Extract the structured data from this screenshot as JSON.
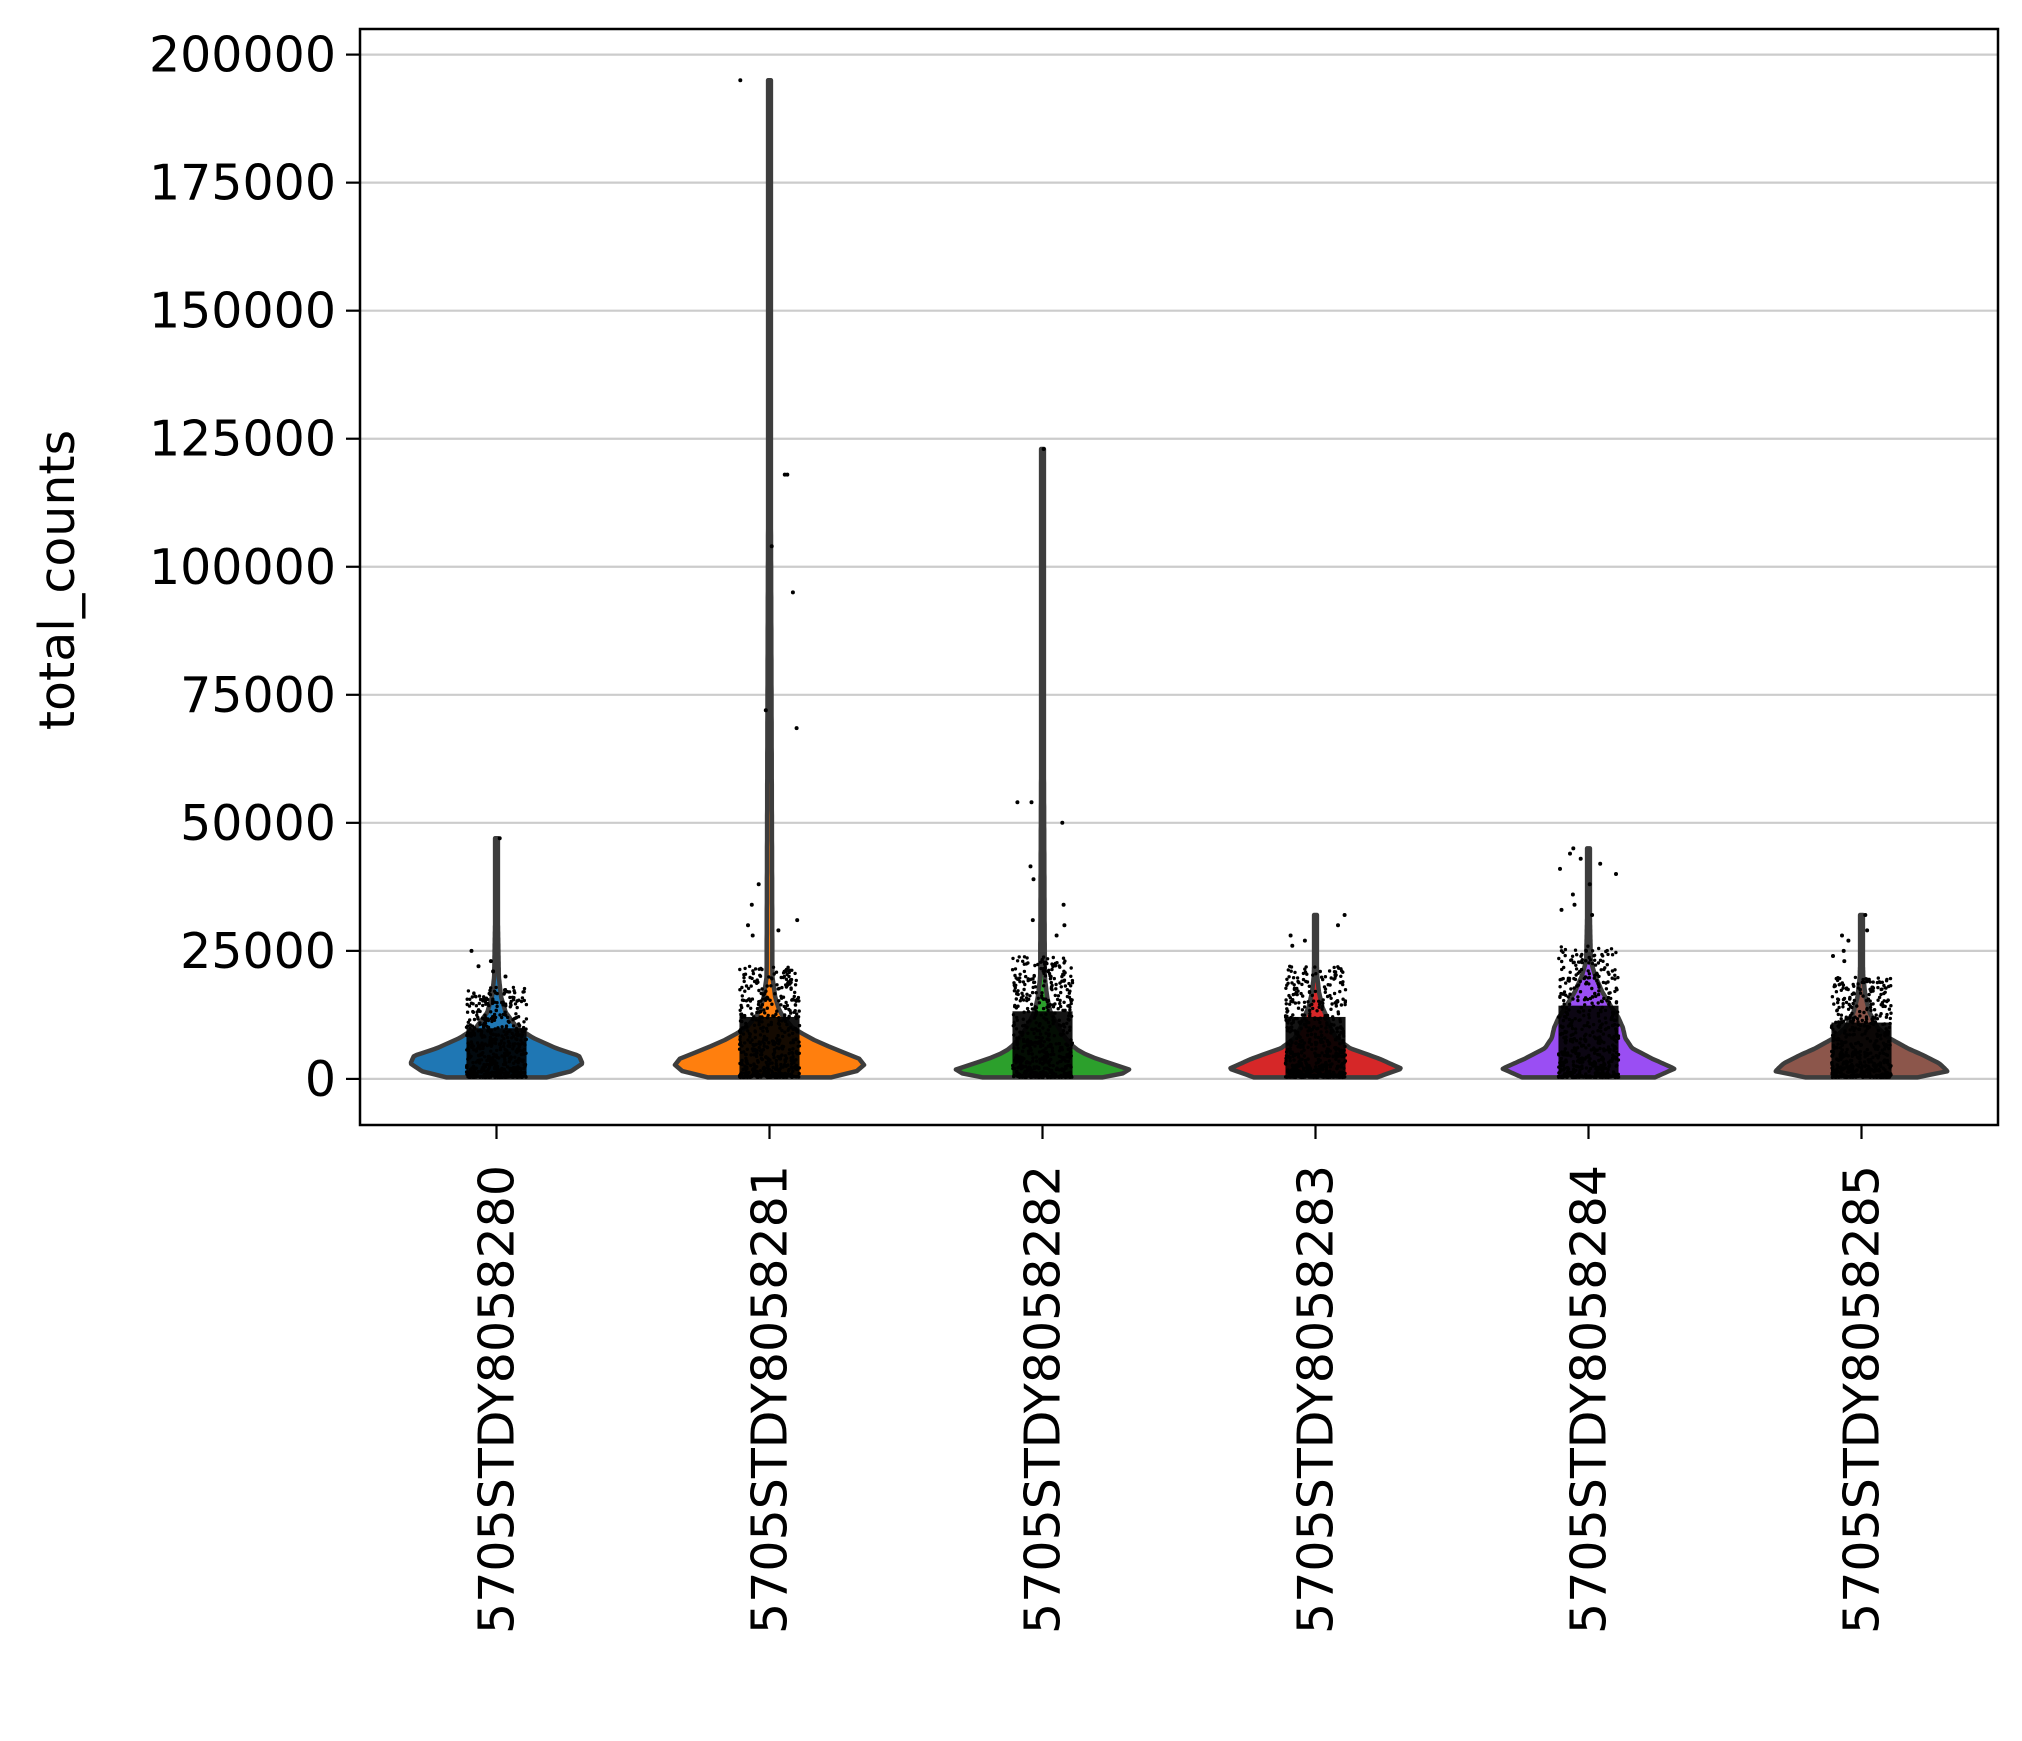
{
  "chart_data": {
    "type": "violin",
    "title": "",
    "xlabel": "",
    "ylabel": "total_counts",
    "ylim": [
      -9000,
      205000
    ],
    "yticks": [
      0,
      25000,
      50000,
      75000,
      100000,
      125000,
      150000,
      175000,
      200000
    ],
    "ytick_labels": [
      "0",
      "25000",
      "50000",
      "75000",
      "100000",
      "125000",
      "150000",
      "175000",
      "200000"
    ],
    "grid": "horizontal",
    "legend": "none",
    "categories": [
      "5705STDY8058280",
      "5705STDY8058281",
      "5705STDY8058282",
      "5705STDY8058283",
      "5705STDY8058284",
      "5705STDY8058285"
    ],
    "series": [
      {
        "color": "#1f77b4",
        "min": 300,
        "max": 47000,
        "density_profile": [
          [
            0,
            0.38
          ],
          [
            1500,
            0.65
          ],
          [
            3000,
            0.75
          ],
          [
            4500,
            0.72
          ],
          [
            6000,
            0.52
          ],
          [
            8000,
            0.32
          ],
          [
            10000,
            0.18
          ],
          [
            13000,
            0.08
          ],
          [
            16000,
            0.04
          ],
          [
            20000,
            0.02
          ]
        ],
        "points_upper": 18000,
        "outliers": [
          47000,
          25000,
          23000,
          22000,
          21000,
          20000
        ]
      },
      {
        "color": "#ff7f0e",
        "min": 300,
        "max": 195000,
        "density_profile": [
          [
            0,
            0.48
          ],
          [
            2000,
            0.85
          ],
          [
            4000,
            0.78
          ],
          [
            6000,
            0.55
          ],
          [
            8000,
            0.35
          ],
          [
            10000,
            0.2
          ],
          [
            13000,
            0.09
          ],
          [
            16000,
            0.05
          ],
          [
            20000,
            0.025
          ]
        ],
        "points_upper": 22000,
        "outliers": [
          195000,
          118000,
          118000,
          104000,
          95000,
          72000,
          68500,
          38000,
          34000,
          31000,
          30000,
          29000,
          28000
        ]
      },
      {
        "color": "#2ca02c",
        "min": 300,
        "max": 123000,
        "density_profile": [
          [
            0,
            0.45
          ],
          [
            1500,
            0.8
          ],
          [
            3000,
            0.6
          ],
          [
            4500,
            0.4
          ],
          [
            6000,
            0.28
          ],
          [
            8000,
            0.2
          ],
          [
            10000,
            0.14
          ],
          [
            13000,
            0.07
          ],
          [
            16000,
            0.04
          ],
          [
            20000,
            0.02
          ]
        ],
        "points_upper": 24000,
        "outliers": [
          123000,
          54000,
          54000,
          50000,
          41500,
          39000,
          34000,
          31000,
          30000,
          28000
        ]
      },
      {
        "color": "#d62728",
        "min": 300,
        "max": 32000,
        "density_profile": [
          [
            0,
            0.5
          ],
          [
            2000,
            0.75
          ],
          [
            4000,
            0.55
          ],
          [
            6000,
            0.3
          ],
          [
            8000,
            0.18
          ],
          [
            10000,
            0.13
          ],
          [
            12000,
            0.1
          ],
          [
            14000,
            0.06
          ],
          [
            17000,
            0.03
          ],
          [
            20000,
            0.015
          ]
        ],
        "points_upper": 22000,
        "outliers": [
          32000,
          30000,
          28000,
          27000,
          26000
        ]
      },
      {
        "color": "#9a4ef3",
        "min": 300,
        "max": 45000,
        "density_profile": [
          [
            0,
            0.55
          ],
          [
            2000,
            0.75
          ],
          [
            4000,
            0.55
          ],
          [
            6000,
            0.38
          ],
          [
            8000,
            0.32
          ],
          [
            10000,
            0.3
          ],
          [
            12000,
            0.26
          ],
          [
            14000,
            0.2
          ],
          [
            17000,
            0.12
          ],
          [
            20000,
            0.06
          ],
          [
            23000,
            0.02
          ]
        ],
        "points_upper": 26000,
        "outliers": [
          45000,
          44000,
          43000,
          42000,
          41000,
          40000,
          38000,
          36000,
          34000,
          33000,
          32000
        ]
      },
      {
        "color": "#8c564b",
        "min": 300,
        "max": 32000,
        "density_profile": [
          [
            0,
            0.42
          ],
          [
            1500,
            0.75
          ],
          [
            3000,
            0.68
          ],
          [
            4500,
            0.55
          ],
          [
            6000,
            0.4
          ],
          [
            8000,
            0.24
          ],
          [
            10000,
            0.14
          ],
          [
            13000,
            0.07
          ],
          [
            16000,
            0.035
          ],
          [
            20000,
            0.015
          ]
        ],
        "points_upper": 20000,
        "outliers": [
          32000,
          29000,
          28000,
          27000,
          25000,
          24000,
          23000
        ]
      }
    ]
  }
}
